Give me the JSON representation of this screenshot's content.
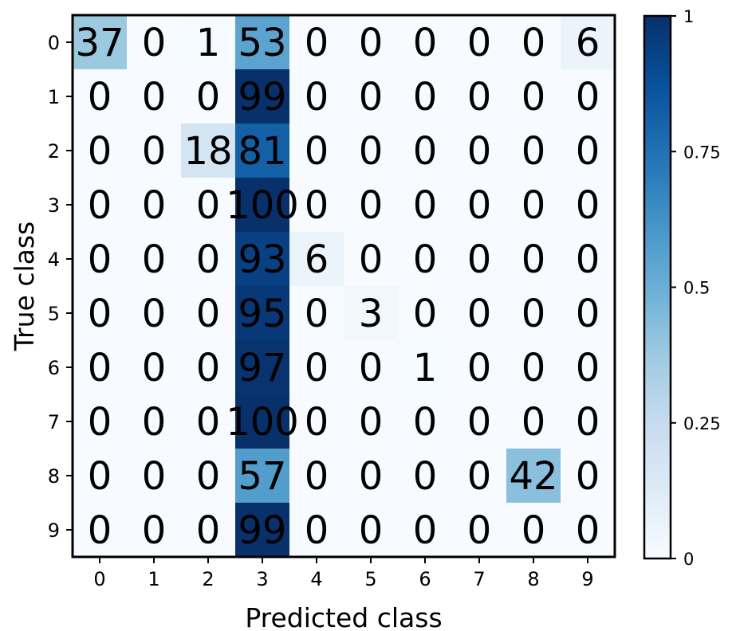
{
  "chart_data": {
    "type": "heatmap",
    "title": "",
    "xlabel": "Predicted class",
    "ylabel": "True class",
    "x_categories": [
      "0",
      "1",
      "2",
      "3",
      "4",
      "5",
      "6",
      "7",
      "8",
      "9"
    ],
    "y_categories": [
      "0",
      "1",
      "2",
      "3",
      "4",
      "5",
      "6",
      "7",
      "8",
      "9"
    ],
    "values": [
      [
        37,
        0,
        1,
        53,
        0,
        0,
        0,
        0,
        0,
        6
      ],
      [
        0,
        0,
        0,
        99,
        0,
        0,
        0,
        0,
        0,
        0
      ],
      [
        0,
        0,
        18,
        81,
        0,
        0,
        0,
        0,
        0,
        0
      ],
      [
        0,
        0,
        0,
        100,
        0,
        0,
        0,
        0,
        0,
        0
      ],
      [
        0,
        0,
        0,
        93,
        6,
        0,
        0,
        0,
        0,
        0
      ],
      [
        0,
        0,
        0,
        95,
        0,
        3,
        0,
        0,
        0,
        0
      ],
      [
        0,
        0,
        0,
        97,
        0,
        0,
        1,
        0,
        0,
        0
      ],
      [
        0,
        0,
        0,
        100,
        0,
        0,
        0,
        0,
        0,
        0
      ],
      [
        0,
        0,
        0,
        57,
        0,
        0,
        0,
        0,
        42,
        0
      ],
      [
        0,
        0,
        0,
        99,
        0,
        0,
        0,
        0,
        0,
        0
      ]
    ],
    "colorbar": {
      "range": [
        0,
        1
      ],
      "ticks": [
        "0",
        "0.25",
        "0.5",
        "0.75",
        "1"
      ],
      "colormap": "Blues"
    },
    "grid": false
  }
}
